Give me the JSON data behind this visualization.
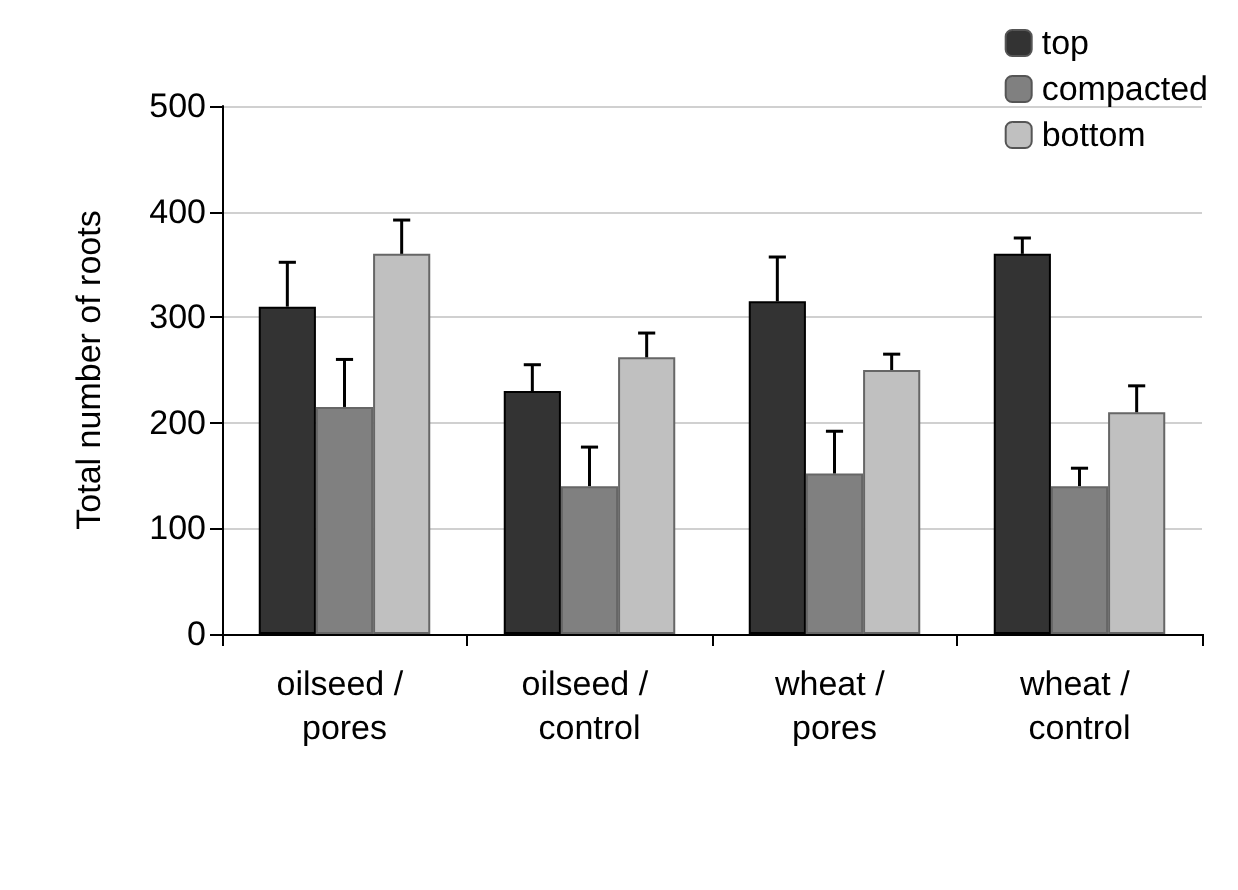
{
  "chart_data": {
    "type": "bar",
    "ylabel": "Total number of roots",
    "categories": [
      "oilseed / pores",
      "oilseed / control",
      "wheat / pores",
      "wheat / control"
    ],
    "series": [
      {
        "name": "top",
        "color": "#333333",
        "values": [
          310,
          230,
          315,
          360
        ],
        "errors": [
          [
            310,
            352
          ],
          [
            230,
            255
          ],
          [
            315,
            357
          ],
          [
            360,
            375
          ]
        ]
      },
      {
        "name": "compacted",
        "color": "#808080",
        "values": [
          215,
          140,
          152,
          140
        ],
        "errors": [
          [
            215,
            260
          ],
          [
            140,
            177
          ],
          [
            152,
            192
          ],
          [
            140,
            157
          ]
        ]
      },
      {
        "name": "bottom",
        "color": "#c0c0c0",
        "values": [
          360,
          262,
          250,
          210
        ],
        "errors": [
          [
            360,
            392
          ],
          [
            262,
            285
          ],
          [
            250,
            265
          ],
          [
            210,
            235
          ]
        ]
      }
    ],
    "ylim": [
      0,
      500
    ],
    "yticks": [
      0,
      100,
      200,
      300,
      400,
      500
    ],
    "grid": "y",
    "legend": "top right"
  }
}
